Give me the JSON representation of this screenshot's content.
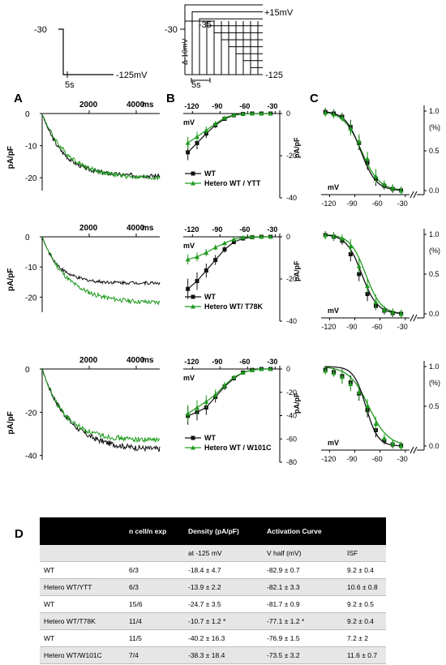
{
  "panel_letters": {
    "a": "A",
    "b": "B",
    "c": "C",
    "d": "D"
  },
  "protocols": {
    "left": {
      "hold": "-30",
      "step": "-125mV",
      "dur": "5s"
    },
    "right": {
      "hold": "-30",
      "start": "-35",
      "end": "+15mV",
      "inc": "Δ-10mV",
      "bottom": "-125",
      "dur": "5s"
    }
  },
  "colors": {
    "wt": "#111111",
    "mut": "#1f9a1f"
  },
  "units": {
    "ms": "ms",
    "mV": "mV",
    "pApF": "pA/pF",
    "pct": "(%)"
  },
  "traceTicks": [
    "2000",
    "4000"
  ],
  "ivTicks": [
    "-120",
    "-90",
    "-60",
    "-30"
  ],
  "rows": [
    {
      "traceY": [
        "0",
        "-10",
        "-20"
      ],
      "ivY": [
        "0",
        "-20",
        "-40"
      ],
      "actY": [
        "1.0",
        "0.5",
        "0.0"
      ],
      "legendWT": "WT",
      "legendMut": "Hetero WT / YTT",
      "traces": {
        "tmax": 5000,
        "ymin": -24,
        "ymax": 0,
        "wt": {
          "end": -19.5,
          "tau": 900
        },
        "mut": {
          "end": -20.3,
          "tau": 1100
        }
      },
      "iv": {
        "ymin": -40,
        "ymax": 0,
        "wt": [
          [
            -125,
            -18.4
          ],
          [
            -115,
            -14
          ],
          [
            -105,
            -9.5
          ],
          [
            -95,
            -5.5
          ],
          [
            -85,
            -2.5
          ],
          [
            -75,
            -0.8
          ],
          [
            -65,
            -0.2
          ],
          [
            -55,
            0
          ],
          [
            -45,
            0
          ],
          [
            -35,
            0
          ]
        ],
        "mut": [
          [
            -125,
            -13.9
          ],
          [
            -115,
            -11
          ],
          [
            -105,
            -8
          ],
          [
            -95,
            -4.8
          ],
          [
            -85,
            -2
          ],
          [
            -75,
            -0.6
          ],
          [
            -65,
            -0.1
          ],
          [
            -55,
            0
          ],
          [
            -45,
            0
          ],
          [
            -35,
            0
          ]
        ]
      },
      "act": {
        "wt": {
          "vhalf": -82.9,
          "k": 9.2
        },
        "mut": {
          "vhalf": -82.1,
          "k": 10.6
        },
        "wtPts": [
          [
            -125,
            0.99
          ],
          [
            -115,
            0.97
          ],
          [
            -105,
            0.93
          ],
          [
            -95,
            0.8
          ],
          [
            -85,
            0.6
          ],
          [
            -75,
            0.35
          ],
          [
            -65,
            0.15
          ],
          [
            -55,
            0.06
          ],
          [
            -45,
            0.02
          ],
          [
            -35,
            0.0
          ]
        ],
        "mutPts": [
          [
            -125,
            0.98
          ],
          [
            -115,
            0.96
          ],
          [
            -105,
            0.92
          ],
          [
            -95,
            0.78
          ],
          [
            -85,
            0.62
          ],
          [
            -75,
            0.4
          ],
          [
            -65,
            0.18
          ],
          [
            -55,
            0.08
          ],
          [
            -45,
            0.03
          ],
          [
            -35,
            0.0
          ]
        ]
      }
    },
    {
      "traceY": [
        "0",
        "-10",
        "-20"
      ],
      "ivY": [
        "0",
        "-20",
        "-40"
      ],
      "actY": [
        "1.0",
        "0.5",
        "0.0"
      ],
      "legendWT": "WT",
      "legendMut": "Hetero WT/ T78K",
      "traces": {
        "tmax": 5000,
        "ymin": -25,
        "ymax": 0,
        "wt": {
          "end": -15.3,
          "tau": 700
        },
        "mut": {
          "end": -22,
          "tau": 1100
        }
      },
      "iv": {
        "ymin": -40,
        "ymax": 0,
        "wt": [
          [
            -125,
            -24.7
          ],
          [
            -115,
            -21
          ],
          [
            -105,
            -16
          ],
          [
            -95,
            -11
          ],
          [
            -85,
            -6
          ],
          [
            -75,
            -2.5
          ],
          [
            -65,
            -0.8
          ],
          [
            -55,
            -0.2
          ],
          [
            -45,
            0
          ],
          [
            -35,
            0
          ]
        ],
        "mut": [
          [
            -125,
            -10.7
          ],
          [
            -115,
            -9.5
          ],
          [
            -105,
            -7.5
          ],
          [
            -95,
            -5
          ],
          [
            -85,
            -3
          ],
          [
            -75,
            -1.2
          ],
          [
            -65,
            -0.3
          ],
          [
            -55,
            0
          ],
          [
            -45,
            0
          ],
          [
            -35,
            0
          ]
        ]
      },
      "act": {
        "wt": {
          "vhalf": -81.7,
          "k": 9.2
        },
        "mut": {
          "vhalf": -77.1,
          "k": 9.2
        },
        "wtPts": [
          [
            -125,
            0.99
          ],
          [
            -115,
            0.97
          ],
          [
            -105,
            0.92
          ],
          [
            -95,
            0.75
          ],
          [
            -85,
            0.5
          ],
          [
            -75,
            0.25
          ],
          [
            -65,
            0.1
          ],
          [
            -55,
            0.04
          ],
          [
            -45,
            0.01
          ],
          [
            -35,
            0.0
          ]
        ],
        "mutPts": [
          [
            -125,
            0.99
          ],
          [
            -115,
            0.98
          ],
          [
            -105,
            0.95
          ],
          [
            -95,
            0.85
          ],
          [
            -85,
            0.6
          ],
          [
            -75,
            0.35
          ],
          [
            -65,
            0.15
          ],
          [
            -55,
            0.05
          ],
          [
            -45,
            0.02
          ],
          [
            -35,
            0.0
          ]
        ]
      }
    },
    {
      "traceY": [
        "0",
        "-20",
        "-40"
      ],
      "ivY": [
        "0",
        "-20",
        "-40",
        "-60",
        "-80"
      ],
      "actY": [
        "1.0",
        "0.5",
        "0.0"
      ],
      "legendWT": "WT",
      "legendMut": "Hetero WT / W101C",
      "traces": {
        "tmax": 5000,
        "ymin": -42,
        "ymax": 0,
        "wt": {
          "end": -37.5,
          "tau": 1150
        },
        "mut": {
          "end": -33,
          "tau": 950
        }
      },
      "iv": {
        "ymin": -80,
        "ymax": 0,
        "wt": [
          [
            -125,
            -40.2
          ],
          [
            -115,
            -37
          ],
          [
            -105,
            -33
          ],
          [
            -95,
            -24
          ],
          [
            -85,
            -15
          ],
          [
            -75,
            -8
          ],
          [
            -65,
            -3
          ],
          [
            -55,
            -0.8
          ],
          [
            -45,
            0
          ],
          [
            -35,
            0
          ]
        ],
        "mut": [
          [
            -125,
            -38.3
          ],
          [
            -115,
            -33
          ],
          [
            -105,
            -28
          ],
          [
            -95,
            -22
          ],
          [
            -85,
            -14
          ],
          [
            -75,
            -7
          ],
          [
            -65,
            -3
          ],
          [
            -55,
            -1
          ],
          [
            -45,
            0
          ],
          [
            -35,
            0
          ]
        ]
      },
      "act": {
        "wt": {
          "vhalf": -76.9,
          "k": 7.2
        },
        "mut": {
          "vhalf": -73.5,
          "k": 11.6
        },
        "wtPts": [
          [
            -125,
            0.96
          ],
          [
            -115,
            0.93
          ],
          [
            -105,
            0.88
          ],
          [
            -95,
            0.8
          ],
          [
            -85,
            0.66
          ],
          [
            -75,
            0.45
          ],
          [
            -65,
            0.2
          ],
          [
            -55,
            0.07
          ],
          [
            -45,
            0.02
          ],
          [
            -35,
            0.0
          ]
        ],
        "mutPts": [
          [
            -125,
            0.95
          ],
          [
            -115,
            0.92
          ],
          [
            -105,
            0.87
          ],
          [
            -95,
            0.78
          ],
          [
            -85,
            0.68
          ],
          [
            -75,
            0.5
          ],
          [
            -65,
            0.28
          ],
          [
            -55,
            0.1
          ],
          [
            -45,
            0.03
          ],
          [
            -35,
            0.0
          ]
        ]
      }
    }
  ],
  "table": {
    "header": [
      "",
      "n cell/n exp",
      "Density (pA/pF)",
      "Activation Curve",
      ""
    ],
    "subheader": [
      "",
      "",
      "at -125 mV",
      "V half (mV)",
      "ISF"
    ],
    "rows": [
      [
        "WT",
        "6/3",
        "-18.4 ± 4.7",
        "-82.9 ± 0.7",
        "9.2 ± 0.4"
      ],
      [
        "Hetero WT/YTT",
        "6/3",
        "-13.9 ± 2.2",
        "-82.1 ± 3.3",
        "10.6 ± 0.8"
      ],
      [
        "WT",
        "15/6",
        "-24.7 ± 3.5",
        "-81.7 ± 0.9",
        "9.2 ± 0.5"
      ],
      [
        "Hetero WT/T78K",
        "11/4",
        "-10.7 ± 1.2 *",
        "-77.1 ± 1.2 *",
        "9.2 ± 0.4"
      ],
      [
        "WT",
        "11/5",
        "-40.2 ± 16.3",
        "-76.9 ± 1.5",
        "7.2 ± 2"
      ],
      [
        "Hetero WT/W101C",
        "7/4",
        "-38.3 ± 18.4",
        "-73.5 ± 3.2",
        "11.6 ± 0.7"
      ]
    ]
  }
}
